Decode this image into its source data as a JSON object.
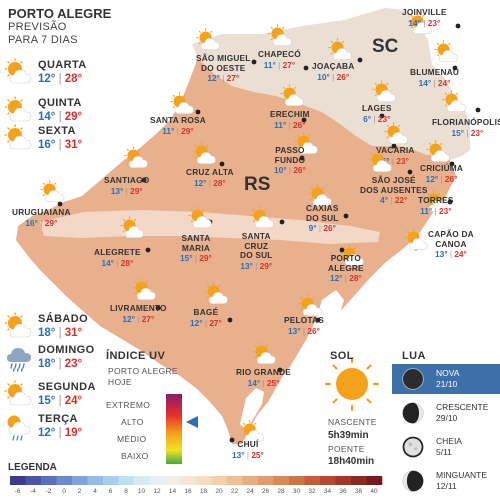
{
  "header": {
    "title": "PORTO ALEGRE",
    "line1": "PREVISÃO",
    "line2": "PARA 7 DIAS"
  },
  "forecast_days": [
    {
      "day": "QUARTA",
      "min": "12°",
      "max": "28°",
      "icon": "partly-cloudy-icon"
    },
    {
      "day": "QUINTA",
      "min": "14°",
      "max": "29°",
      "icon": "partly-cloudy-icon"
    },
    {
      "day": "SEXTA",
      "min": "16°",
      "max": "31°",
      "icon": "partly-cloudy-icon"
    },
    {
      "day": "SÁBADO",
      "min": "18°",
      "max": "31°",
      "icon": "partly-cloudy-icon"
    },
    {
      "day": "DOMINGO",
      "min": "18°",
      "max": "23°",
      "icon": "rain-cloud-icon"
    },
    {
      "day": "SEGUNDA",
      "min": "15°",
      "max": "24°",
      "icon": "partly-cloudy-icon"
    },
    {
      "day": "TERÇA",
      "min": "12°",
      "max": "19°",
      "icon": "sun-rain-icon"
    }
  ],
  "state_labels": {
    "rs": "RS",
    "sc": "SC"
  },
  "cities": [
    {
      "name": [
        "JOINVILLE"
      ],
      "min": "14°",
      "max": "23°"
    },
    {
      "name": [
        "CHAPECÓ"
      ],
      "min": "11°",
      "max": "27°"
    },
    {
      "name": [
        "SÃO MIGUEL",
        "DO OESTE"
      ],
      "min": "12°",
      "max": "27°"
    },
    {
      "name": [
        "JOAÇABA"
      ],
      "min": "10°",
      "max": "26°"
    },
    {
      "name": [
        "BLUMENAU"
      ],
      "min": "14°",
      "max": "24°"
    },
    {
      "name": [
        "LAGES"
      ],
      "min": "6°",
      "max": "23°"
    },
    {
      "name": [
        "FLORIANÓPOLIS"
      ],
      "min": "15°",
      "max": "23°"
    },
    {
      "name": [
        "SANTA ROSA"
      ],
      "min": "11°",
      "max": "29°"
    },
    {
      "name": [
        "ERECHIM"
      ],
      "min": "11°",
      "max": "26°"
    },
    {
      "name": [
        "PASSO",
        "FUNDO"
      ],
      "min": "10°",
      "max": "26°"
    },
    {
      "name": [
        "VACARIA"
      ],
      "min": "6°",
      "max": "23°"
    },
    {
      "name": [
        "SÃO JOSÉ",
        "DOS AUSENTES"
      ],
      "min": "4°",
      "max": "22°"
    },
    {
      "name": [
        "CRICIÚMA"
      ],
      "min": "12°",
      "max": "26°"
    },
    {
      "name": [
        "SANTIAGO"
      ],
      "min": "13°",
      "max": "29°"
    },
    {
      "name": [
        "CRUZ ALTA"
      ],
      "min": "12°",
      "max": "28°"
    },
    {
      "name": [
        "TORRES"
      ],
      "min": "11°",
      "max": "23°"
    },
    {
      "name": [
        "URUGUAIANA"
      ],
      "min": "16°",
      "max": "29°"
    },
    {
      "name": [
        "CAXIAS",
        "DO SUL"
      ],
      "min": "9°",
      "max": "26°"
    },
    {
      "name": [
        "CAPÃO DA",
        "CANOA"
      ],
      "min": "13°",
      "max": "24°"
    },
    {
      "name": [
        "ALEGRETE"
      ],
      "min": "14°",
      "max": "28°"
    },
    {
      "name": [
        "SANTA",
        "MARIA"
      ],
      "min": "15°",
      "max": "29°"
    },
    {
      "name": [
        "SANTA",
        "CRUZ",
        "DO SUL"
      ],
      "min": "13°",
      "max": "29°"
    },
    {
      "name": [
        "PORTO",
        "ALEGRE"
      ],
      "min": "12°",
      "max": "28°"
    },
    {
      "name": [
        "LIVRAMENTO"
      ],
      "min": "12°",
      "max": "27°"
    },
    {
      "name": [
        "BAGÉ"
      ],
      "min": "12°",
      "max": "27°"
    },
    {
      "name": [
        "PELOTAS"
      ],
      "min": "13°",
      "max": "26°"
    },
    {
      "name": [
        "RIO GRANDE"
      ],
      "min": "14°",
      "max": "25°"
    },
    {
      "name": [
        "CHUÍ"
      ],
      "min": "13°",
      "max": "25°"
    }
  ],
  "uv": {
    "title": "ÍNDICE UV",
    "line1": "PORTO ALEGRE",
    "line2": "HOJE",
    "levels": [
      "EXTREMO",
      "ALTO",
      "MÉDIO",
      "BAIXO"
    ],
    "current_level": "ALTO"
  },
  "sun": {
    "title": "SOL",
    "sunrise_label": "NASCENTE",
    "sunrise": "5h39min",
    "sunset_label": "POENTE",
    "sunset": "18h40min"
  },
  "moon": {
    "title": "LUA",
    "phases": [
      {
        "name": "NOVA",
        "date": "21/10",
        "active": true
      },
      {
        "name": "CRESCENTE",
        "date": "29/10",
        "active": false
      },
      {
        "name": "CHEIA",
        "date": "5/11",
        "active": false
      },
      {
        "name": "MINGUANTE",
        "date": "12/11",
        "active": false
      }
    ]
  },
  "legend": {
    "title": "LEGENDA",
    "ticks": [
      "-6",
      "-4",
      "-2",
      "0",
      "2",
      "4",
      "6",
      "8",
      "10",
      "12",
      "14",
      "16",
      "18",
      "20",
      "22",
      "24",
      "26",
      "28",
      "30",
      "32",
      "34",
      "36",
      "38",
      "40"
    ],
    "colors": [
      "#3d3a8c",
      "#4a55a6",
      "#5a6fbf",
      "#6c8ad0",
      "#80a3dc",
      "#95bbe6",
      "#aacfee",
      "#bfe0f2",
      "#d4ebf4",
      "#e5f0f2",
      "#f0eee6",
      "#f5e6d4",
      "#f7dcc2",
      "#f5ceab",
      "#efbf96",
      "#e9ae80",
      "#e29c6b",
      "#d98857",
      "#cf7447",
      "#c25f3a",
      "#b24a30",
      "#a03728",
      "#8c2722",
      "#751a1c"
    ]
  },
  "map_colors": {
    "rs_land": "#e9b08d",
    "rs_land_cool": "#f0c8ad",
    "rs_band": "#f3d8c8",
    "sc_land": "#ebdfd4",
    "ocean": "#ffffff"
  }
}
